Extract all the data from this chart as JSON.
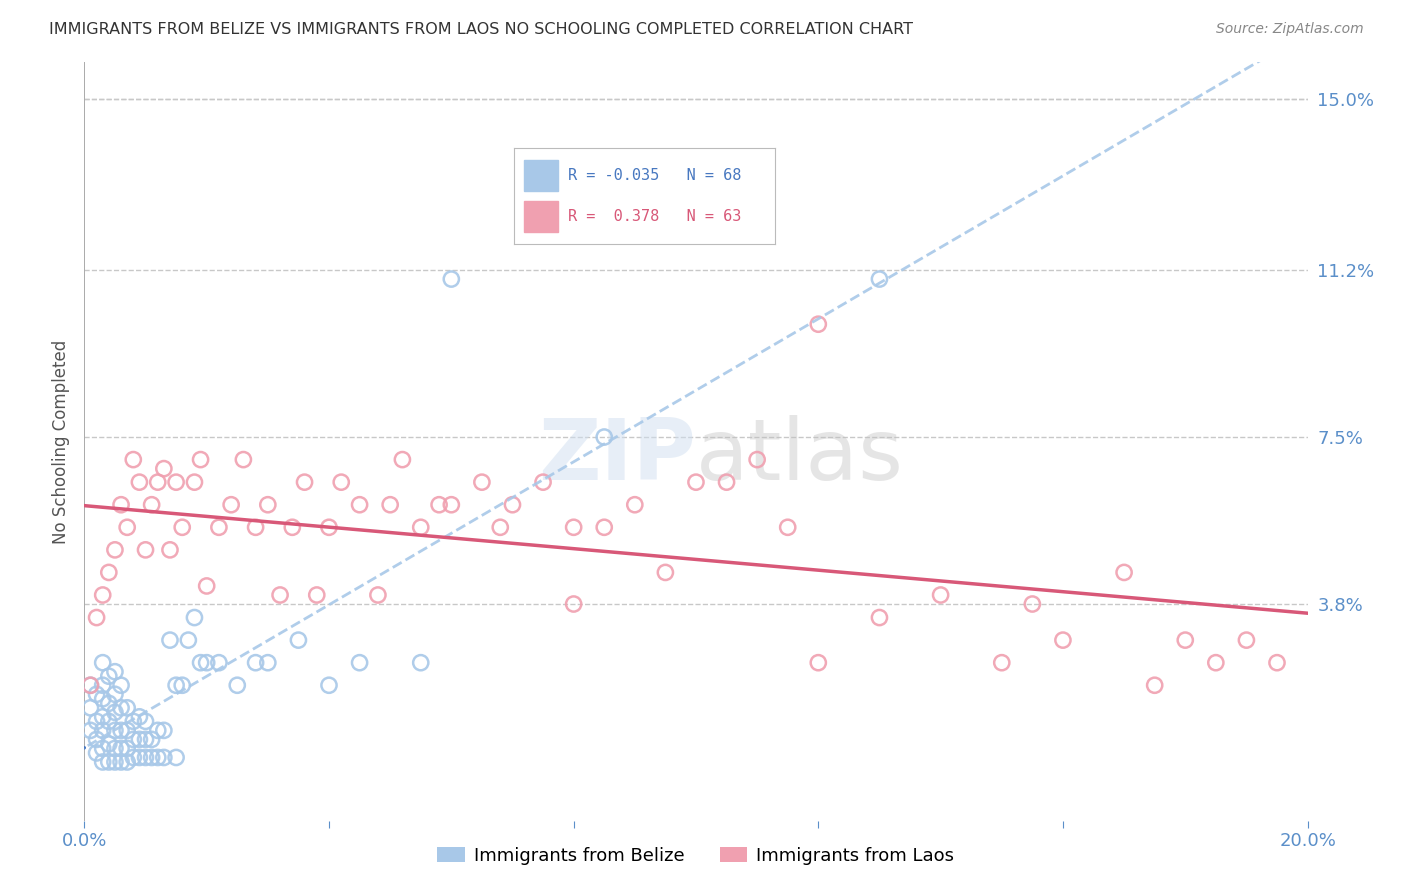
{
  "title": "IMMIGRANTS FROM BELIZE VS IMMIGRANTS FROM LAOS NO SCHOOLING COMPLETED CORRELATION CHART",
  "source": "Source: ZipAtlas.com",
  "ylabel": "No Schooling Completed",
  "xlim": [
    0.0,
    0.2
  ],
  "ylim": [
    -0.01,
    0.158
  ],
  "ytick_labels_right": [
    "15.0%",
    "11.2%",
    "7.5%",
    "3.8%"
  ],
  "ytick_vals_right": [
    0.15,
    0.112,
    0.075,
    0.038
  ],
  "grid_color": "#c8c8c8",
  "background_color": "#ffffff",
  "belize_color": "#a8c8e8",
  "laos_color": "#f0a0b0",
  "belize_line_color": "#4878c0",
  "laos_line_color": "#d85878",
  "belize_R": -0.035,
  "belize_N": 68,
  "laos_R": 0.378,
  "laos_N": 63,
  "watermark": "ZIPatlas",
  "belize_x": [
    0.001,
    0.001,
    0.001,
    0.002,
    0.002,
    0.002,
    0.002,
    0.003,
    0.003,
    0.003,
    0.003,
    0.003,
    0.003,
    0.003,
    0.004,
    0.004,
    0.004,
    0.004,
    0.004,
    0.005,
    0.005,
    0.005,
    0.005,
    0.005,
    0.005,
    0.006,
    0.006,
    0.006,
    0.006,
    0.006,
    0.007,
    0.007,
    0.007,
    0.007,
    0.008,
    0.008,
    0.008,
    0.009,
    0.009,
    0.009,
    0.01,
    0.01,
    0.01,
    0.011,
    0.011,
    0.012,
    0.012,
    0.013,
    0.013,
    0.014,
    0.015,
    0.015,
    0.016,
    0.017,
    0.018,
    0.019,
    0.02,
    0.022,
    0.025,
    0.028,
    0.03,
    0.035,
    0.04,
    0.045,
    0.055,
    0.06,
    0.085,
    0.13
  ],
  "belize_y": [
    0.01,
    0.015,
    0.02,
    0.005,
    0.008,
    0.012,
    0.018,
    0.003,
    0.006,
    0.01,
    0.013,
    0.017,
    0.02,
    0.025,
    0.003,
    0.007,
    0.012,
    0.016,
    0.022,
    0.003,
    0.006,
    0.01,
    0.014,
    0.018,
    0.023,
    0.003,
    0.006,
    0.01,
    0.015,
    0.02,
    0.003,
    0.006,
    0.01,
    0.015,
    0.004,
    0.008,
    0.012,
    0.004,
    0.008,
    0.013,
    0.004,
    0.008,
    0.012,
    0.004,
    0.008,
    0.004,
    0.01,
    0.004,
    0.01,
    0.03,
    0.004,
    0.02,
    0.02,
    0.03,
    0.035,
    0.025,
    0.025,
    0.025,
    0.02,
    0.025,
    0.025,
    0.03,
    0.02,
    0.025,
    0.025,
    0.11,
    0.075,
    0.11
  ],
  "laos_x": [
    0.001,
    0.002,
    0.003,
    0.004,
    0.005,
    0.006,
    0.007,
    0.008,
    0.009,
    0.01,
    0.011,
    0.012,
    0.013,
    0.014,
    0.015,
    0.016,
    0.018,
    0.019,
    0.02,
    0.022,
    0.024,
    0.026,
    0.028,
    0.03,
    0.032,
    0.034,
    0.036,
    0.038,
    0.04,
    0.042,
    0.045,
    0.048,
    0.05,
    0.052,
    0.055,
    0.058,
    0.06,
    0.065,
    0.068,
    0.07,
    0.075,
    0.08,
    0.085,
    0.09,
    0.095,
    0.1,
    0.105,
    0.11,
    0.115,
    0.12,
    0.13,
    0.14,
    0.15,
    0.16,
    0.17,
    0.175,
    0.18,
    0.185,
    0.19,
    0.195,
    0.12,
    0.155,
    0.08
  ],
  "laos_y": [
    0.02,
    0.035,
    0.04,
    0.045,
    0.05,
    0.06,
    0.055,
    0.07,
    0.065,
    0.05,
    0.06,
    0.065,
    0.068,
    0.05,
    0.065,
    0.055,
    0.065,
    0.07,
    0.042,
    0.055,
    0.06,
    0.07,
    0.055,
    0.06,
    0.04,
    0.055,
    0.065,
    0.04,
    0.055,
    0.065,
    0.06,
    0.04,
    0.06,
    0.07,
    0.055,
    0.06,
    0.06,
    0.065,
    0.055,
    0.06,
    0.065,
    0.055,
    0.055,
    0.06,
    0.045,
    0.065,
    0.065,
    0.07,
    0.055,
    0.025,
    0.035,
    0.04,
    0.025,
    0.03,
    0.045,
    0.02,
    0.03,
    0.025,
    0.03,
    0.025,
    0.1,
    0.038,
    0.038
  ]
}
